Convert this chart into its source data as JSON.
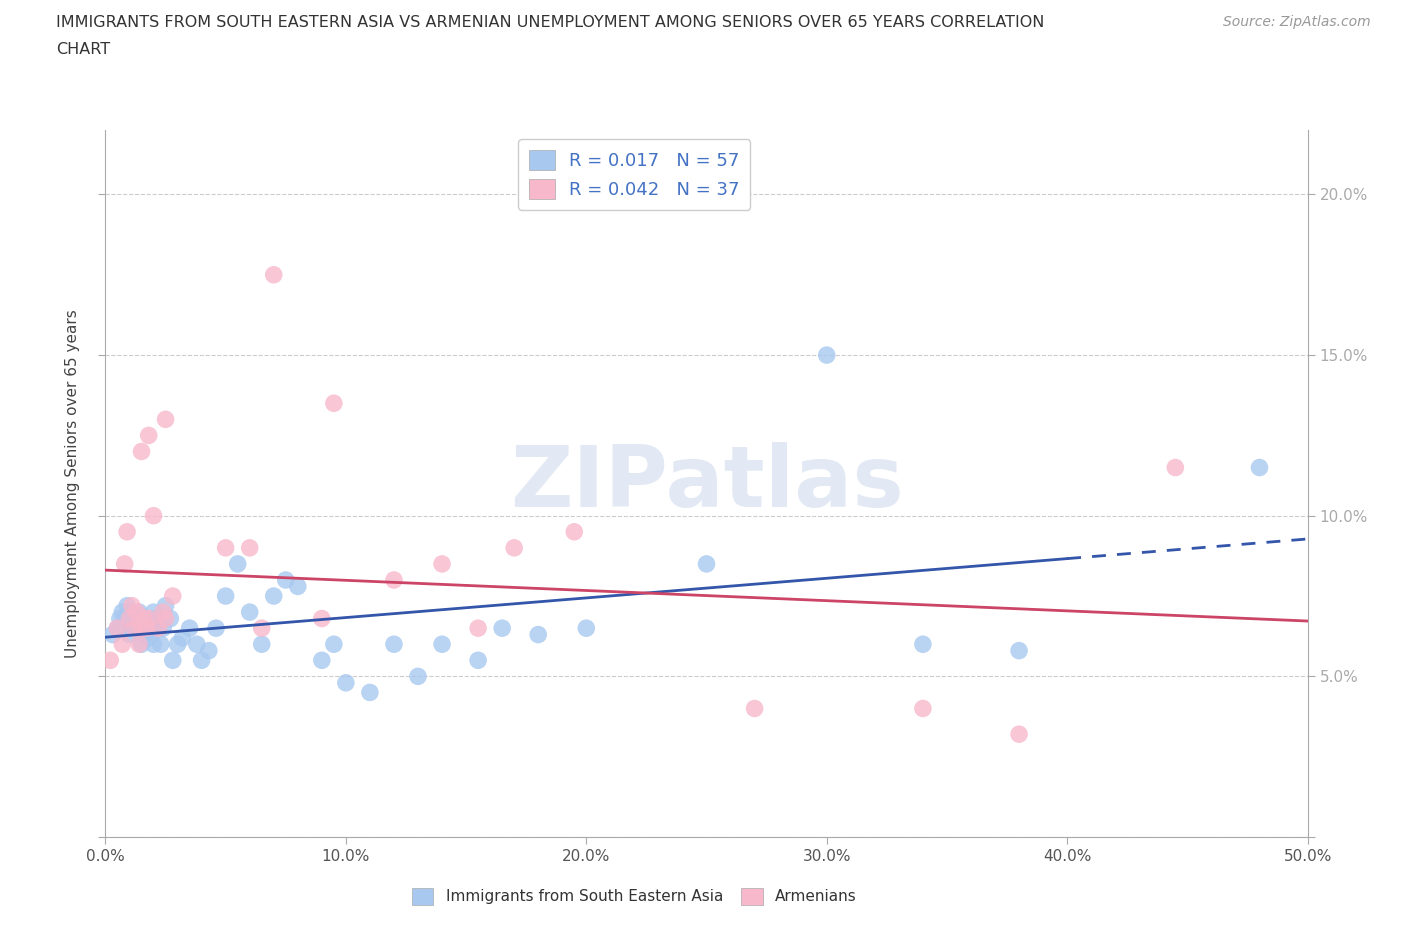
{
  "title_line1": "IMMIGRANTS FROM SOUTH EASTERN ASIA VS ARMENIAN UNEMPLOYMENT AMONG SENIORS OVER 65 YEARS CORRELATION",
  "title_line2": "CHART",
  "source": "Source: ZipAtlas.com",
  "ylabel": "Unemployment Among Seniors over 65 years",
  "xlim": [
    0,
    0.5
  ],
  "ylim": [
    0.0,
    0.22
  ],
  "xticks": [
    0.0,
    0.1,
    0.2,
    0.3,
    0.4,
    0.5
  ],
  "xtick_labels": [
    "0.0%",
    "10.0%",
    "20.0%",
    "30.0%",
    "40.0%",
    "50.0%"
  ],
  "yticks": [
    0.0,
    0.05,
    0.1,
    0.15,
    0.2
  ],
  "ytick_labels": [
    "",
    "5.0%",
    "10.0%",
    "15.0%",
    "20.0%"
  ],
  "legend_label1": "Immigrants from South Eastern Asia",
  "legend_label2": "Armenians",
  "r1": "0.017",
  "n1": "57",
  "r2": "0.042",
  "n2": "37",
  "color_blue": "#a8c8f0",
  "color_pink": "#f8b8cc",
  "line_color_blue": "#3355aa",
  "line_color_pink": "#cc4466",
  "text_color_blue": "#4472c4",
  "watermark_color": "#ccd8ec",
  "background_color": "#ffffff",
  "grid_color": "#cccccc",
  "blue_x": [
    0.003,
    0.005,
    0.006,
    0.007,
    0.008,
    0.009,
    0.01,
    0.01,
    0.011,
    0.012,
    0.013,
    0.014,
    0.015,
    0.015,
    0.016,
    0.017,
    0.018,
    0.019,
    0.02,
    0.02,
    0.021,
    0.022,
    0.023,
    0.024,
    0.025,
    0.027,
    0.028,
    0.03,
    0.032,
    0.035,
    0.038,
    0.04,
    0.043,
    0.046,
    0.05,
    0.055,
    0.06,
    0.065,
    0.07,
    0.075,
    0.08,
    0.09,
    0.095,
    0.1,
    0.11,
    0.12,
    0.13,
    0.14,
    0.155,
    0.165,
    0.18,
    0.2,
    0.25,
    0.3,
    0.34,
    0.38,
    0.48
  ],
  "blue_y": [
    0.063,
    0.065,
    0.068,
    0.07,
    0.068,
    0.072,
    0.063,
    0.07,
    0.065,
    0.068,
    0.065,
    0.07,
    0.06,
    0.065,
    0.063,
    0.065,
    0.062,
    0.065,
    0.06,
    0.07,
    0.068,
    0.065,
    0.06,
    0.065,
    0.072,
    0.068,
    0.055,
    0.06,
    0.062,
    0.065,
    0.06,
    0.055,
    0.058,
    0.065,
    0.075,
    0.085,
    0.07,
    0.06,
    0.075,
    0.08,
    0.078,
    0.055,
    0.06,
    0.048,
    0.045,
    0.06,
    0.05,
    0.06,
    0.055,
    0.065,
    0.063,
    0.065,
    0.085,
    0.15,
    0.06,
    0.058,
    0.115
  ],
  "pink_x": [
    0.002,
    0.005,
    0.007,
    0.008,
    0.009,
    0.01,
    0.011,
    0.012,
    0.013,
    0.014,
    0.015,
    0.015,
    0.016,
    0.017,
    0.018,
    0.018,
    0.02,
    0.022,
    0.024,
    0.025,
    0.025,
    0.028,
    0.05,
    0.06,
    0.065,
    0.07,
    0.09,
    0.095,
    0.12,
    0.14,
    0.155,
    0.17,
    0.195,
    0.27,
    0.34,
    0.38,
    0.445
  ],
  "pink_y": [
    0.055,
    0.065,
    0.06,
    0.085,
    0.095,
    0.068,
    0.072,
    0.065,
    0.07,
    0.06,
    0.065,
    0.12,
    0.068,
    0.065,
    0.068,
    0.125,
    0.1,
    0.065,
    0.07,
    0.068,
    0.13,
    0.075,
    0.09,
    0.09,
    0.065,
    0.175,
    0.068,
    0.135,
    0.08,
    0.085,
    0.065,
    0.09,
    0.095,
    0.04,
    0.04,
    0.032,
    0.115
  ],
  "blue_line_start": 0.0,
  "blue_line_solid_end": 0.4,
  "blue_line_dash_end": 0.5,
  "pink_line_start": 0.0,
  "pink_line_end": 0.5
}
